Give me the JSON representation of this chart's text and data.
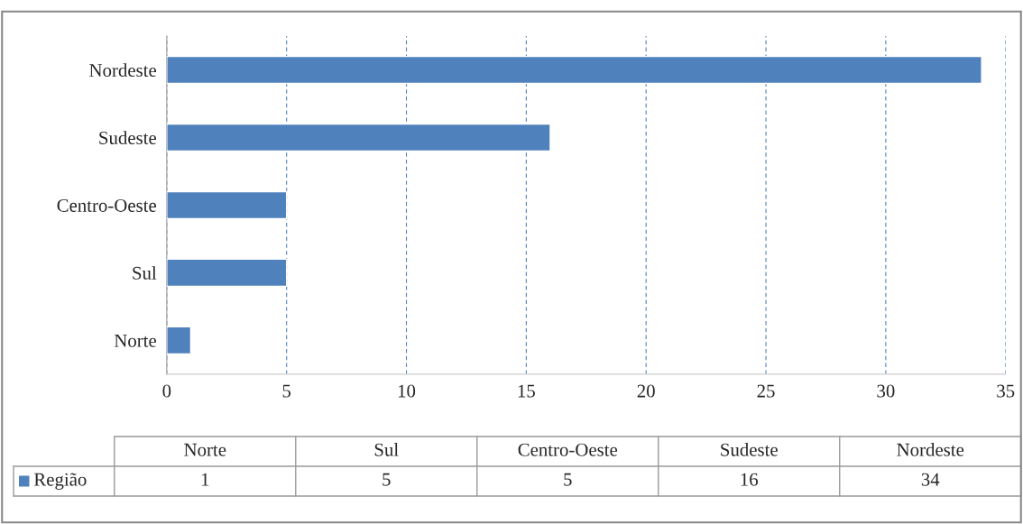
{
  "chart_data": [
    {
      "type": "bar",
      "orientation": "horizontal",
      "categories": [
        "Nordeste",
        "Sudeste",
        "Centro-Oeste",
        "Sul",
        "Norte"
      ],
      "series": [
        {
          "color": "#4f81bd",
          "values": [
            34,
            16,
            5,
            5,
            1
          ]
        }
      ],
      "xlim": [
        0,
        35
      ],
      "xticks": [
        0,
        5,
        10,
        15,
        20,
        25,
        30,
        35
      ],
      "grid": "x"
    },
    {
      "type": "other",
      "categories": [
        "Norte",
        "Sul",
        "Centro-Oeste",
        "Sudeste",
        "Nordeste"
      ],
      "series": [
        {
          "name": "Região",
          "color": "#4f81bd",
          "values": [
            1,
            5,
            5,
            16,
            34
          ]
        }
      ],
      "legend": "left",
      "data_labels": true
    }
  ]
}
